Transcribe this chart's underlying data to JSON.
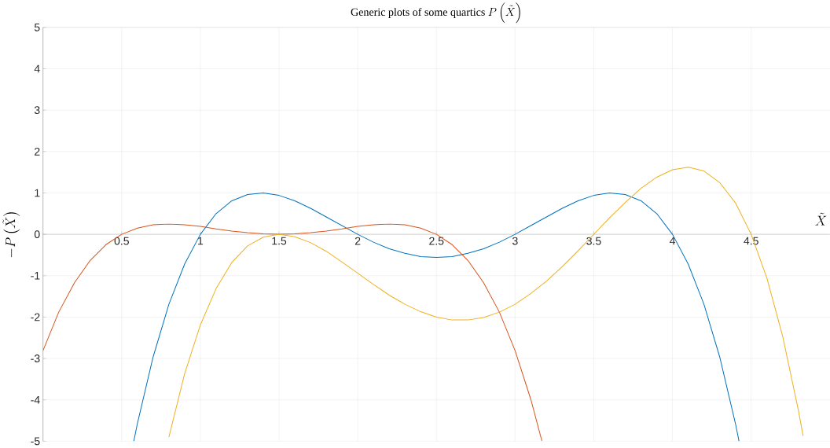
{
  "chart_data": {
    "type": "line",
    "title": "\\text{Generic plots of some quartics }P\\left(\\tilde{X}\\right)",
    "xlabel": "\\tilde{X}",
    "ylabel": "-P\\left(\\tilde{X}\\right)",
    "xlim": [
      0,
      5
    ],
    "ylim": [
      -5,
      5
    ],
    "xticks": [
      0.5,
      1,
      1.5,
      2,
      2.5,
      3,
      3.5,
      4,
      4.5
    ],
    "yticks": [
      -5,
      -4,
      -3,
      -2,
      -1,
      0,
      1,
      2,
      3,
      4,
      5
    ],
    "grid": true,
    "series": [
      {
        "color": "#0072bd",
        "x": [
          0.577,
          0.6,
          0.7,
          0.8,
          0.9,
          1.0,
          1.1,
          1.2,
          1.3,
          1.4,
          1.5,
          1.6,
          1.7,
          1.8,
          1.9,
          2.0,
          2.1,
          2.2,
          2.3,
          2.4,
          2.5,
          2.6,
          2.7,
          2.8,
          2.9,
          3.0,
          3.1,
          3.2,
          3.3,
          3.4,
          3.5,
          3.6,
          3.7,
          3.8,
          3.9,
          4.0,
          4.1,
          4.2,
          4.3,
          4.4,
          4.423
        ],
        "values": [
          -5,
          -4.57,
          -2.96,
          -1.69,
          -0.72,
          0,
          0.5,
          0.81,
          0.96,
          1.0,
          0.94,
          0.81,
          0.63,
          0.42,
          0.21,
          0,
          -0.19,
          -0.35,
          -0.46,
          -0.54,
          -0.56,
          -0.54,
          -0.46,
          -0.35,
          -0.19,
          0,
          0.21,
          0.42,
          0.63,
          0.81,
          0.94,
          1.0,
          0.96,
          0.81,
          0.5,
          0,
          -0.72,
          -1.69,
          -2.96,
          -4.57,
          -5
        ]
      },
      {
        "color": "#d95319",
        "x": [
          0,
          0.1,
          0.2,
          0.3,
          0.4,
          0.5,
          0.6,
          0.7,
          0.8,
          0.9,
          1.0,
          1.1,
          1.2,
          1.3,
          1.4,
          1.5,
          1.6,
          1.7,
          1.8,
          1.9,
          2.0,
          2.1,
          2.2,
          2.3,
          2.4,
          2.5,
          2.6,
          2.7,
          2.8,
          2.9,
          3.0,
          3.1,
          3.17
        ],
        "values": [
          -2.81,
          -1.88,
          -1.17,
          -0.63,
          -0.25,
          0,
          0.15,
          0.23,
          0.25,
          0.23,
          0.19,
          0.13,
          0.08,
          0.04,
          0.01,
          0,
          0.01,
          0.04,
          0.08,
          0.13,
          0.19,
          0.23,
          0.25,
          0.23,
          0.15,
          0,
          -0.25,
          -0.63,
          -1.17,
          -1.88,
          -2.81,
          -3.99,
          -4.99
        ]
      },
      {
        "color": "#edb120",
        "x": [
          0.8,
          0.9,
          1.0,
          1.1,
          1.2,
          1.3,
          1.4,
          1.5,
          1.6,
          1.7,
          1.8,
          1.9,
          2.0,
          2.1,
          2.2,
          2.3,
          2.4,
          2.5,
          2.6,
          2.7,
          2.8,
          2.9,
          3.0,
          3.1,
          3.2,
          3.3,
          3.4,
          3.5,
          3.6,
          3.7,
          3.8,
          3.9,
          4.0,
          4.1,
          4.2,
          4.3,
          4.4,
          4.5,
          4.6,
          4.7,
          4.8,
          4.83
        ],
        "values": [
          -4.9,
          -3.37,
          -2.19,
          -1.31,
          -0.68,
          -0.28,
          -0.07,
          0,
          -0.06,
          -0.2,
          -0.41,
          -0.67,
          -0.94,
          -1.21,
          -1.47,
          -1.69,
          -1.87,
          -2.0,
          -2.07,
          -2.07,
          -2.01,
          -1.88,
          -1.69,
          -1.43,
          -1.13,
          -0.78,
          -0.4,
          0,
          0.4,
          0.77,
          1.11,
          1.38,
          1.56,
          1.62,
          1.53,
          1.25,
          0.76,
          0,
          -1.06,
          -2.46,
          -4.25,
          -4.87
        ]
      }
    ]
  }
}
